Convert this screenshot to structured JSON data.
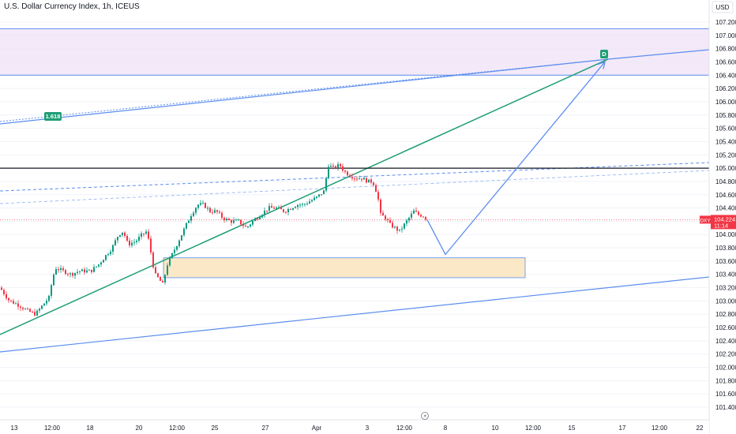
{
  "header": {
    "title": "U.S. Dollar Currency Index, 1h, ICEUS",
    "currency": "USD"
  },
  "colors": {
    "up": "#089981",
    "down": "#f23645",
    "trend_green": "#1f9e74",
    "blue_line": "#5b8def",
    "zone_purple_fill": "#efe2f6",
    "zone_orange_fill": "#fbe8c6",
    "last_price": "#f23645"
  },
  "chart_data": {
    "type": "candlestick",
    "symbol": "DXY",
    "last_price": "104.224",
    "countdown": "11:14",
    "ylim": [
      101.2,
      107.35
    ],
    "y_ticks": [
      "107.200",
      "107.000",
      "106.800",
      "106.600",
      "106.400",
      "106.200",
      "106.000",
      "105.800",
      "105.600",
      "105.400",
      "105.200",
      "105.000",
      "104.800",
      "104.600",
      "104.400",
      "104.200",
      "104.000",
      "103.800",
      "103.600",
      "103.400",
      "103.200",
      "103.000",
      "102.800",
      "102.600",
      "102.400",
      "102.200",
      "102.000",
      "101.800",
      "101.600",
      "101.400"
    ],
    "x_ticks": [
      "13",
      "12:00",
      "18",
      "20",
      "12:00",
      "25",
      "27",
      "Apr",
      "3",
      "12:00",
      "8",
      "10",
      "12:00",
      "15",
      "17",
      "12:00",
      "22"
    ],
    "price_path": [
      [
        0,
        103.2
      ],
      [
        12,
        103.0
      ],
      [
        22,
        102.95
      ],
      [
        35,
        102.85
      ],
      [
        45,
        102.8
      ],
      [
        55,
        102.95
      ],
      [
        62,
        103.05
      ],
      [
        66,
        103.3
      ],
      [
        70,
        103.5
      ],
      [
        80,
        103.45
      ],
      [
        90,
        103.4
      ],
      [
        100,
        103.45
      ],
      [
        115,
        103.45
      ],
      [
        125,
        103.55
      ],
      [
        135,
        103.7
      ],
      [
        142,
        103.8
      ],
      [
        150,
        104.0
      ],
      [
        156,
        104.05
      ],
      [
        162,
        103.85
      ],
      [
        172,
        103.9
      ],
      [
        180,
        104.0
      ],
      [
        186,
        104.05
      ],
      [
        190,
        103.8
      ],
      [
        196,
        103.4
      ],
      [
        200,
        103.35
      ],
      [
        206,
        103.25
      ],
      [
        212,
        103.55
      ],
      [
        218,
        103.7
      ],
      [
        226,
        103.9
      ],
      [
        234,
        104.1
      ],
      [
        242,
        104.3
      ],
      [
        250,
        104.45
      ],
      [
        258,
        104.45
      ],
      [
        266,
        104.35
      ],
      [
        274,
        104.35
      ],
      [
        282,
        104.25
      ],
      [
        292,
        104.2
      ],
      [
        302,
        104.2
      ],
      [
        312,
        104.1
      ],
      [
        320,
        104.2
      ],
      [
        330,
        104.3
      ],
      [
        340,
        104.4
      ],
      [
        350,
        104.4
      ],
      [
        360,
        104.35
      ],
      [
        368,
        104.4
      ],
      [
        376,
        104.45
      ],
      [
        384,
        104.45
      ],
      [
        392,
        104.5
      ],
      [
        400,
        104.55
      ],
      [
        410,
        104.65
      ],
      [
        416,
        105.05
      ],
      [
        422,
        105.0
      ],
      [
        430,
        105.05
      ],
      [
        436,
        104.95
      ],
      [
        442,
        104.9
      ],
      [
        450,
        104.85
      ],
      [
        458,
        104.85
      ],
      [
        466,
        104.8
      ],
      [
        472,
        104.8
      ],
      [
        478,
        104.6
      ],
      [
        482,
        104.3
      ],
      [
        488,
        104.25
      ],
      [
        494,
        104.15
      ],
      [
        500,
        104.1
      ],
      [
        506,
        104.05
      ],
      [
        512,
        104.15
      ],
      [
        518,
        104.25
      ],
      [
        524,
        104.35
      ],
      [
        530,
        104.3
      ],
      [
        536,
        104.28
      ],
      [
        541,
        104.224
      ]
    ],
    "projection_path": [
      [
        541,
        104.224
      ],
      [
        564,
        103.7
      ],
      [
        766,
        106.6
      ]
    ],
    "ranges": [
      {
        "kind": "purple-zone",
        "from": 106.4,
        "to": 107.1
      },
      {
        "kind": "orange-zone",
        "from": 103.35,
        "to": 103.65
      }
    ],
    "horizontal_levels": [
      105.0
    ],
    "annotations": [
      {
        "text": "1.618",
        "price": 105.85
      },
      {
        "text": "D",
        "price": 106.75
      }
    ]
  }
}
